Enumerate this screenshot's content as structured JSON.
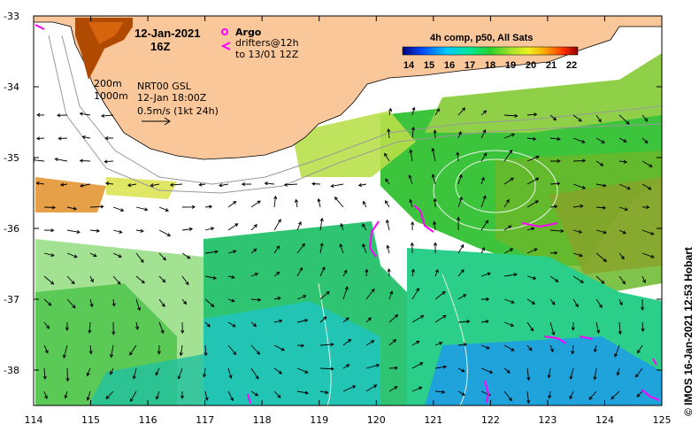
{
  "title": {
    "date": "12-Jan-2021",
    "hour": "16Z"
  },
  "legend": {
    "argo_label": "Argo",
    "drifters_line1": "drifters@12h",
    "drifters_line2": "to 13/01 12Z",
    "argo_color": "#ff00ff"
  },
  "annotations": {
    "isobath_shallow": "200m",
    "isobath_deep": "1000m",
    "source_line1": "NRT00 GSL",
    "source_line2": "12-Jan 18:00Z",
    "scale_label": "0.5m/s (1kt 24h)"
  },
  "colorbar": {
    "title": "4h comp, p50, All Sats",
    "ticks": [
      "14",
      "15",
      "16",
      "17",
      "18",
      "19",
      "20",
      "21",
      "22"
    ]
  },
  "axes": {
    "x_ticks": [
      "114",
      "115",
      "116",
      "117",
      "118",
      "119",
      "120",
      "121",
      "122",
      "123",
      "124",
      "125"
    ],
    "y_ticks": [
      "-33",
      "-34",
      "-35",
      "-36",
      "-37",
      "-38"
    ],
    "xlim": [
      114,
      125
    ],
    "ylim": [
      -38.5,
      -33
    ]
  },
  "credit": "© IMOS 16-Jan-2021 12:53 Hobart",
  "colors": {
    "land": "#f9c79a",
    "heat": "#b04a00",
    "drifter": "#ff00ff"
  }
}
